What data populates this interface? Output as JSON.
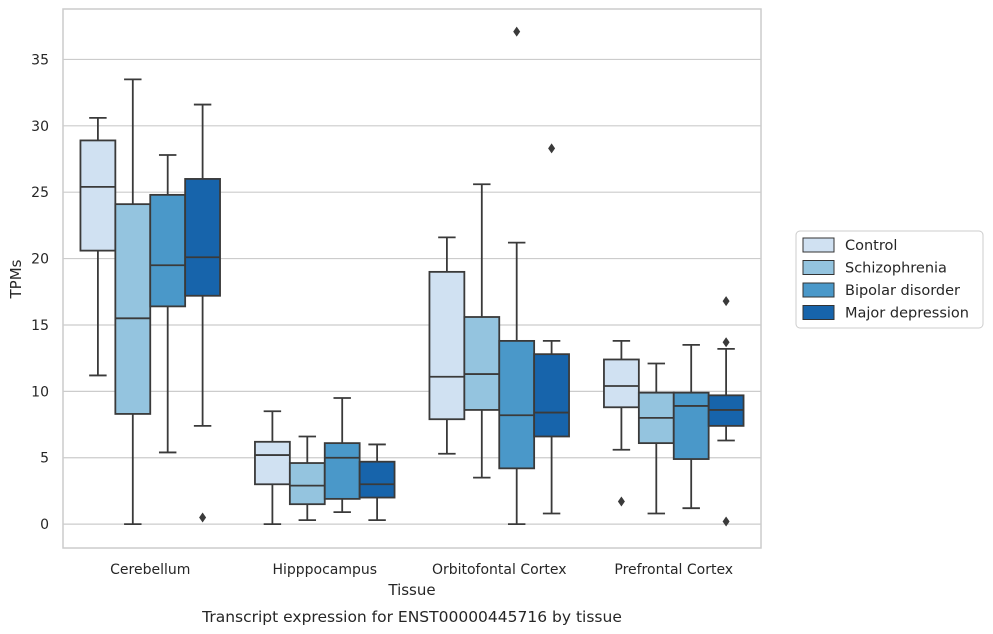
{
  "chart_data": {
    "type": "box",
    "xlabel": "Tissue",
    "ylabel": "TPMs",
    "caption": "Transcript expression for ENST00000445716 by tissue",
    "ylim": [
      -1.8,
      38.8
    ],
    "yticks": [
      0,
      5,
      10,
      15,
      20,
      25,
      30,
      35
    ],
    "grid": true,
    "legend_position": "right",
    "categories": [
      "Cerebellum",
      "Hipppocampus",
      "Orbitofontal Cortex",
      "Prefrontal Cortex"
    ],
    "series": [
      {
        "name": "Control",
        "color": "#d0e1f2",
        "boxes": [
          {
            "whisker_low": 11.2,
            "q1": 20.6,
            "median": 25.4,
            "q3": 28.9,
            "whisker_high": 30.6,
            "outliers": []
          },
          {
            "whisker_low": 0.0,
            "q1": 3.0,
            "median": 5.2,
            "q3": 6.2,
            "whisker_high": 8.5,
            "outliers": []
          },
          {
            "whisker_low": 5.3,
            "q1": 7.9,
            "median": 11.1,
            "q3": 19.0,
            "whisker_high": 21.6,
            "outliers": []
          },
          {
            "whisker_low": 5.6,
            "q1": 8.8,
            "median": 10.4,
            "q3": 12.4,
            "whisker_high": 13.8,
            "outliers": [
              1.7
            ]
          }
        ]
      },
      {
        "name": "Schizophrenia",
        "color": "#94c4df",
        "boxes": [
          {
            "whisker_low": 0.0,
            "q1": 8.3,
            "median": 15.5,
            "q3": 24.1,
            "whisker_high": 33.5,
            "outliers": []
          },
          {
            "whisker_low": 0.3,
            "q1": 1.5,
            "median": 2.9,
            "q3": 4.6,
            "whisker_high": 6.6,
            "outliers": []
          },
          {
            "whisker_low": 3.5,
            "q1": 8.6,
            "median": 11.3,
            "q3": 15.6,
            "whisker_high": 25.6,
            "outliers": []
          },
          {
            "whisker_low": 0.8,
            "q1": 6.1,
            "median": 8.0,
            "q3": 9.9,
            "whisker_high": 12.1,
            "outliers": []
          }
        ]
      },
      {
        "name": "Bipolar disorder",
        "color": "#4a98c9",
        "boxes": [
          {
            "whisker_low": 5.4,
            "q1": 16.4,
            "median": 19.5,
            "q3": 24.8,
            "whisker_high": 27.8,
            "outliers": []
          },
          {
            "whisker_low": 0.9,
            "q1": 1.9,
            "median": 5.0,
            "q3": 6.1,
            "whisker_high": 9.5,
            "outliers": []
          },
          {
            "whisker_low": 0.0,
            "q1": 4.2,
            "median": 8.2,
            "q3": 13.8,
            "whisker_high": 21.2,
            "outliers": [
              37.1
            ]
          },
          {
            "whisker_low": 1.2,
            "q1": 4.9,
            "median": 8.9,
            "q3": 9.9,
            "whisker_high": 13.5,
            "outliers": []
          }
        ]
      },
      {
        "name": "Major depression",
        "color": "#1764ab",
        "boxes": [
          {
            "whisker_low": 7.4,
            "q1": 17.2,
            "median": 20.1,
            "q3": 26.0,
            "whisker_high": 31.6,
            "outliers": [
              0.5
            ]
          },
          {
            "whisker_low": 0.3,
            "q1": 2.0,
            "median": 3.0,
            "q3": 4.7,
            "whisker_high": 6.0,
            "outliers": []
          },
          {
            "whisker_low": 0.8,
            "q1": 6.6,
            "median": 8.4,
            "q3": 12.8,
            "whisker_high": 13.8,
            "outliers": [
              28.3
            ]
          },
          {
            "whisker_low": 6.3,
            "q1": 7.4,
            "median": 8.6,
            "q3": 9.7,
            "whisker_high": 13.2,
            "outliers": [
              0.2,
              13.7,
              16.8
            ]
          }
        ]
      }
    ]
  }
}
